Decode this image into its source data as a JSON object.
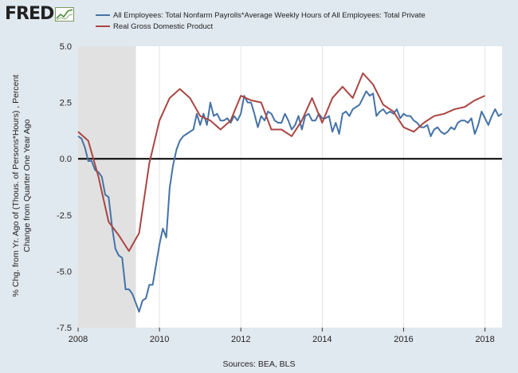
{
  "header": {
    "logo_text": "FRED",
    "logo_icon": "fred-chart-icon"
  },
  "colors": {
    "series1": "#4572a7",
    "series2": "#aa4643",
    "recession": "#e1e1e1",
    "background": "#e1e9f0",
    "plot": "#ffffff",
    "grid": "#e4e4e4",
    "zero_line": "#000000"
  },
  "footer": {
    "source": "Sources: BEA, BLS"
  },
  "chart_data": {
    "type": "line",
    "ylabel_line1": "% Chg. from Yr. Ago of (Thous. of Persons*Hours) , Percent",
    "ylabel_line2": "Change from Quarter One Year Ago",
    "xlim": [
      2008.0,
      2018.42
    ],
    "ylim": [
      -7.5,
      5.0
    ],
    "x_ticks": [
      2008,
      2010,
      2012,
      2014,
      2016,
      2018
    ],
    "x_tick_labels": [
      "2008",
      "2010",
      "2012",
      "2014",
      "2016",
      "2018"
    ],
    "y_ticks": [
      5.0,
      2.5,
      0.0,
      -2.5,
      -5.0,
      -7.5
    ],
    "y_tick_labels": [
      "5.0",
      "2.5",
      "0.0",
      "-2.5",
      "-5.0",
      "-7.5"
    ],
    "grid": "vertical",
    "zero_line": true,
    "recession_shading": [
      2008.0,
      2009.42
    ],
    "legend_position": "top",
    "series": [
      {
        "name": "All Employees: Total Nonfarm Payrolls*Average Weekly Hours of All Employees: Total Private",
        "color": "#4572a7",
        "points": [
          [
            2008.0,
            1.0
          ],
          [
            2008.083,
            0.9
          ],
          [
            2008.167,
            0.5
          ],
          [
            2008.25,
            -0.1
          ],
          [
            2008.333,
            -0.1
          ],
          [
            2008.417,
            -0.5
          ],
          [
            2008.5,
            -0.6
          ],
          [
            2008.583,
            -0.8
          ],
          [
            2008.667,
            -1.6
          ],
          [
            2008.75,
            -1.7
          ],
          [
            2008.833,
            -3.0
          ],
          [
            2008.917,
            -4.0
          ],
          [
            2009.0,
            -4.3
          ],
          [
            2009.083,
            -4.4
          ],
          [
            2009.167,
            -5.8
          ],
          [
            2009.25,
            -5.8
          ],
          [
            2009.333,
            -6.0
          ],
          [
            2009.417,
            -6.4
          ],
          [
            2009.5,
            -6.8
          ],
          [
            2009.583,
            -6.3
          ],
          [
            2009.667,
            -6.2
          ],
          [
            2009.75,
            -5.6
          ],
          [
            2009.833,
            -5.6
          ],
          [
            2009.917,
            -4.7
          ],
          [
            2010.0,
            -3.8
          ],
          [
            2010.083,
            -3.1
          ],
          [
            2010.167,
            -3.5
          ],
          [
            2010.25,
            -1.3
          ],
          [
            2010.333,
            -0.3
          ],
          [
            2010.417,
            0.4
          ],
          [
            2010.5,
            0.8
          ],
          [
            2010.583,
            1.0
          ],
          [
            2010.667,
            1.1
          ],
          [
            2010.75,
            1.2
          ],
          [
            2010.833,
            1.3
          ],
          [
            2010.917,
            2.0
          ],
          [
            2011.0,
            1.5
          ],
          [
            2011.083,
            2.0
          ],
          [
            2011.167,
            1.5
          ],
          [
            2011.25,
            2.5
          ],
          [
            2011.333,
            1.9
          ],
          [
            2011.417,
            2.0
          ],
          [
            2011.5,
            1.7
          ],
          [
            2011.583,
            1.7
          ],
          [
            2011.667,
            1.8
          ],
          [
            2011.75,
            1.6
          ],
          [
            2011.833,
            1.9
          ],
          [
            2011.917,
            1.7
          ],
          [
            2012.0,
            2.0
          ],
          [
            2012.083,
            2.8
          ],
          [
            2012.167,
            2.5
          ],
          [
            2012.25,
            2.5
          ],
          [
            2012.333,
            2.0
          ],
          [
            2012.417,
            1.4
          ],
          [
            2012.5,
            1.9
          ],
          [
            2012.583,
            1.7
          ],
          [
            2012.667,
            2.1
          ],
          [
            2012.75,
            2.0
          ],
          [
            2012.833,
            1.7
          ],
          [
            2012.917,
            1.6
          ],
          [
            2013.0,
            1.6
          ],
          [
            2013.083,
            2.0
          ],
          [
            2013.167,
            1.7
          ],
          [
            2013.25,
            1.3
          ],
          [
            2013.333,
            1.5
          ],
          [
            2013.417,
            1.9
          ],
          [
            2013.5,
            1.3
          ],
          [
            2013.583,
            1.9
          ],
          [
            2013.667,
            2.0
          ],
          [
            2013.75,
            1.7
          ],
          [
            2013.833,
            1.7
          ],
          [
            2013.917,
            2.0
          ],
          [
            2014.0,
            1.8
          ],
          [
            2014.083,
            1.8
          ],
          [
            2014.167,
            1.9
          ],
          [
            2014.25,
            1.2
          ],
          [
            2014.333,
            1.6
          ],
          [
            2014.417,
            1.1
          ],
          [
            2014.5,
            2.0
          ],
          [
            2014.583,
            2.1
          ],
          [
            2014.667,
            1.9
          ],
          [
            2014.75,
            2.2
          ],
          [
            2014.833,
            2.3
          ],
          [
            2014.917,
            2.4
          ],
          [
            2015.0,
            2.7
          ],
          [
            2015.083,
            3.0
          ],
          [
            2015.167,
            2.8
          ],
          [
            2015.25,
            2.9
          ],
          [
            2015.333,
            1.9
          ],
          [
            2015.417,
            2.1
          ],
          [
            2015.5,
            2.2
          ],
          [
            2015.583,
            2.0
          ],
          [
            2015.667,
            2.1
          ],
          [
            2015.75,
            2.0
          ],
          [
            2015.833,
            2.2
          ],
          [
            2015.917,
            1.8
          ],
          [
            2016.0,
            2.0
          ],
          [
            2016.083,
            1.9
          ],
          [
            2016.167,
            1.9
          ],
          [
            2016.25,
            1.7
          ],
          [
            2016.333,
            1.6
          ],
          [
            2016.417,
            1.4
          ],
          [
            2016.5,
            1.4
          ],
          [
            2016.583,
            1.5
          ],
          [
            2016.667,
            1.0
          ],
          [
            2016.75,
            1.3
          ],
          [
            2016.833,
            1.4
          ],
          [
            2016.917,
            1.2
          ],
          [
            2017.0,
            1.1
          ],
          [
            2017.083,
            1.2
          ],
          [
            2017.167,
            1.4
          ],
          [
            2017.25,
            1.3
          ],
          [
            2017.333,
            1.6
          ],
          [
            2017.417,
            1.7
          ],
          [
            2017.5,
            1.7
          ],
          [
            2017.583,
            1.6
          ],
          [
            2017.667,
            1.8
          ],
          [
            2017.75,
            1.1
          ],
          [
            2017.833,
            1.5
          ],
          [
            2017.917,
            2.1
          ],
          [
            2018.0,
            1.8
          ],
          [
            2018.083,
            1.5
          ],
          [
            2018.167,
            1.9
          ],
          [
            2018.25,
            2.2
          ],
          [
            2018.333,
            1.9
          ],
          [
            2018.417,
            2.0
          ]
        ]
      },
      {
        "name": "Real Gross Domestic Product",
        "color": "#aa4643",
        "points": [
          [
            2008.0,
            1.2
          ],
          [
            2008.25,
            0.8
          ],
          [
            2008.5,
            -0.8
          ],
          [
            2008.75,
            -2.8
          ],
          [
            2009.0,
            -3.4
          ],
          [
            2009.25,
            -4.1
          ],
          [
            2009.5,
            -3.3
          ],
          [
            2009.75,
            -0.2
          ],
          [
            2010.0,
            1.7
          ],
          [
            2010.25,
            2.7
          ],
          [
            2010.5,
            3.1
          ],
          [
            2010.75,
            2.7
          ],
          [
            2011.0,
            1.9
          ],
          [
            2011.25,
            1.7
          ],
          [
            2011.5,
            1.3
          ],
          [
            2011.75,
            1.7
          ],
          [
            2012.0,
            2.8
          ],
          [
            2012.25,
            2.6
          ],
          [
            2012.5,
            2.5
          ],
          [
            2012.75,
            1.3
          ],
          [
            2013.0,
            1.3
          ],
          [
            2013.25,
            1.0
          ],
          [
            2013.5,
            1.7
          ],
          [
            2013.75,
            2.7
          ],
          [
            2014.0,
            1.6
          ],
          [
            2014.25,
            2.7
          ],
          [
            2014.5,
            3.2
          ],
          [
            2014.75,
            2.7
          ],
          [
            2015.0,
            3.8
          ],
          [
            2015.25,
            3.3
          ],
          [
            2015.5,
            2.4
          ],
          [
            2015.75,
            2.1
          ],
          [
            2016.0,
            1.4
          ],
          [
            2016.25,
            1.2
          ],
          [
            2016.5,
            1.6
          ],
          [
            2016.75,
            1.9
          ],
          [
            2017.0,
            2.0
          ],
          [
            2017.25,
            2.2
          ],
          [
            2017.5,
            2.3
          ],
          [
            2017.75,
            2.6
          ],
          [
            2018.0,
            2.8
          ]
        ]
      }
    ]
  }
}
